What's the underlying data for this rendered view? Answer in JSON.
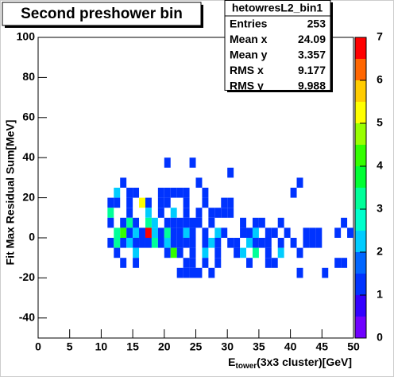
{
  "chart_data": {
    "type": "heatmap",
    "title": "Second preshower bin",
    "y_label": "Fit Max Residual Sum[MeV]",
    "x_label": {
      "main": "E",
      "sub": "tower",
      "rest": "(3x3 cluster)[GeV]"
    },
    "stats": {
      "name": "hetowresL2_bin1",
      "rows": [
        {
          "label": "Entries",
          "value": 253
        },
        {
          "label": "Mean x",
          "value": 24.09
        },
        {
          "label": "Mean y",
          "value": 3.357
        },
        {
          "label": "RMS x",
          "value": 9.177
        },
        {
          "label": "RMS y",
          "value": 9.988
        }
      ]
    },
    "xlim": [
      0,
      50
    ],
    "xticks": [
      0,
      5,
      10,
      15,
      20,
      25,
      30,
      35,
      40,
      45,
      50
    ],
    "ylim": [
      -50,
      100
    ],
    "yticks": [
      -40,
      -20,
      0,
      20,
      40,
      60,
      80,
      100
    ],
    "zlim": [
      0,
      7
    ],
    "zticks": [
      0,
      1,
      2,
      3,
      4,
      5,
      6,
      7
    ],
    "palette": [
      "#7000ff",
      "#3300ff",
      "#0033ff",
      "#0066ff",
      "#00ccff",
      "#00ffcc",
      "#00ff99",
      "#00ff33",
      "#33ff00",
      "#99ff00",
      "#ffff00",
      "#ffcc00",
      "#ff6600",
      "#ff0000"
    ],
    "x": [
      20,
      24,
      30,
      13,
      25,
      41,
      12,
      14,
      15,
      19,
      20,
      21,
      22,
      23,
      26,
      40,
      11,
      12,
      14,
      16,
      17,
      19,
      20,
      23,
      26,
      29,
      30,
      11,
      14,
      17,
      19,
      21,
      23,
      25,
      27,
      28,
      29,
      30,
      11,
      13,
      14,
      15,
      17,
      18,
      20,
      21,
      22,
      23,
      24,
      25,
      27,
      32,
      34,
      35,
      38,
      48,
      12,
      13,
      14,
      15,
      16,
      17,
      18,
      19,
      20,
      21,
      22,
      23,
      24,
      26,
      28,
      29,
      32,
      33,
      34,
      36,
      37,
      39,
      42,
      43,
      44,
      47,
      49,
      11,
      12,
      13,
      14,
      15,
      16,
      17,
      18,
      19,
      20,
      21,
      22,
      23,
      24,
      26,
      27,
      28,
      30,
      31,
      33,
      34,
      35,
      36,
      38,
      40,
      42,
      43,
      44,
      12,
      15,
      20,
      21,
      22,
      24,
      26,
      28,
      31,
      32,
      34,
      36,
      38,
      41,
      13,
      15,
      23,
      24,
      26,
      28,
      33,
      36,
      37,
      47,
      48,
      22,
      23,
      24,
      25,
      27,
      41,
      45
    ],
    "y": [
      35,
      35,
      30,
      25,
      25,
      25,
      20,
      20,
      20,
      20,
      20,
      20,
      20,
      20,
      20,
      20,
      15,
      15,
      15,
      15,
      15,
      15,
      15,
      15,
      15,
      15,
      15,
      10,
      10,
      10,
      10,
      10,
      10,
      10,
      10,
      10,
      10,
      10,
      5,
      5,
      5,
      5,
      5,
      5,
      5,
      5,
      5,
      5,
      5,
      5,
      5,
      5,
      5,
      5,
      5,
      5,
      0,
      0,
      0,
      0,
      0,
      0,
      0,
      0,
      0,
      0,
      0,
      0,
      0,
      0,
      0,
      0,
      0,
      0,
      0,
      0,
      0,
      0,
      0,
      0,
      0,
      0,
      0,
      -5,
      -5,
      -5,
      -5,
      -5,
      -5,
      -5,
      -5,
      -5,
      -5,
      -5,
      -5,
      -5,
      -5,
      -5,
      -5,
      -5,
      -5,
      -5,
      -5,
      -5,
      -5,
      -5,
      -5,
      -5,
      -5,
      -5,
      -5,
      -10,
      -10,
      -10,
      -10,
      -10,
      -10,
      -10,
      -10,
      -10,
      -10,
      -10,
      -10,
      -10,
      -10,
      -15,
      -15,
      -15,
      -15,
      -15,
      -15,
      -15,
      -15,
      -15,
      -15,
      -15,
      -20,
      -20,
      -20,
      -20,
      -20,
      -20,
      -20
    ],
    "values": [
      1,
      1,
      1,
      1,
      1,
      1,
      2,
      1,
      1,
      1,
      1,
      1,
      1,
      1,
      1,
      1,
      1,
      1,
      1,
      5,
      1,
      1,
      1,
      1,
      1,
      1,
      1,
      3,
      1,
      2,
      1,
      2,
      1,
      1,
      1,
      1,
      1,
      1,
      1,
      1,
      3,
      1,
      3,
      2,
      1,
      1,
      1,
      1,
      1,
      1,
      1,
      1,
      1,
      1,
      1,
      1,
      3,
      4,
      1,
      2,
      1,
      7,
      2,
      1,
      3,
      1,
      1,
      2,
      1,
      1,
      2,
      1,
      1,
      1,
      2,
      1,
      1,
      1,
      1,
      1,
      1,
      1,
      1,
      1,
      3,
      1,
      2,
      1,
      1,
      1,
      3,
      1,
      2,
      1,
      1,
      1,
      1,
      1,
      2,
      1,
      1,
      1,
      2,
      1,
      1,
      1,
      1,
      1,
      1,
      1,
      1,
      1,
      2,
      1,
      4,
      1,
      1,
      2,
      1,
      1,
      2,
      3,
      1,
      2,
      1,
      1,
      1,
      1,
      1,
      1,
      1,
      1,
      1,
      1,
      1,
      1,
      1,
      1,
      1,
      1,
      1,
      1,
      1
    ]
  }
}
